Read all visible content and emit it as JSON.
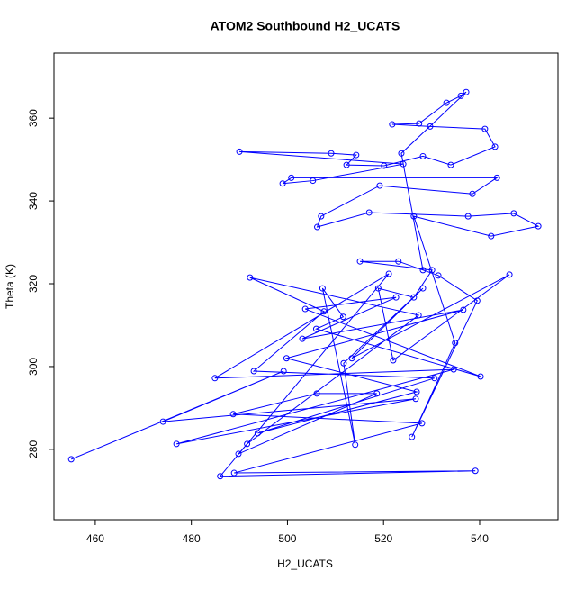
{
  "chart_data": {
    "type": "scatter",
    "title": "ATOM2 Southbound H2_UCATS",
    "x_label": "H2_UCATS",
    "y_label": "Theta (K)",
    "color": "#0000ff",
    "connect_points": true,
    "xlim": [
      451.4,
      556.3
    ],
    "ylim": [
      263.0,
      375.7
    ],
    "xticks": [
      460,
      480,
      500,
      520,
      540
    ],
    "yticks": [
      280,
      300,
      320,
      340,
      360
    ],
    "x": [
      455.0,
      499.2,
      474.1,
      526.7,
      476.9,
      534.6,
      484.9,
      521.1,
      486.0,
      539.1,
      488.9,
      528.0,
      488.7,
      506.1,
      518.6,
      489.8,
      491.6,
      527.3,
      492.2,
      507.6,
      493.0,
      530.6,
      493.8,
      526.9,
      499.8,
      536.6,
      503.1,
      522.6,
      503.7,
      540.2,
      506.0,
      511.6,
      507.3,
      514.1,
      511.7,
      528.2,
      513.4,
      546.2,
      522.0,
      518.9,
      526.3,
      530.1,
      515.1,
      523.1,
      531.4,
      539.5,
      525.9,
      534.9,
      526.3,
      542.4,
      552.2,
      547.1,
      537.6,
      517.0,
      506.2,
      507.0,
      519.2,
      538.5,
      543.6,
      500.8,
      499.0,
      505.3,
      524.1,
      490.0,
      509.1,
      514.3,
      512.3,
      520.1,
      528.2,
      534.0,
      543.2,
      541.1,
      529.7,
      521.8,
      527.4,
      533.1,
      536.1,
      537.2,
      523.7,
      528.2
    ],
    "y": [
      277.6,
      298.9,
      286.7,
      292.2,
      281.3,
      299.3,
      297.2,
      322.4,
      273.5,
      274.8,
      274.3,
      286.3,
      288.5,
      293.5,
      293.5,
      278.9,
      281.3,
      312.4,
      321.5,
      313.3,
      298.9,
      297.2,
      283.9,
      293.9,
      302.0,
      313.7,
      306.7,
      316.7,
      313.9,
      297.6,
      309.1,
      312.0,
      318.9,
      281.1,
      300.8,
      318.9,
      302.0,
      322.2,
      301.5,
      318.9,
      316.7,
      323.3,
      325.4,
      325.4,
      322.0,
      315.9,
      283.0,
      305.7,
      336.3,
      331.5,
      333.9,
      337.0,
      336.3,
      337.2,
      333.7,
      336.3,
      343.7,
      341.7,
      345.6,
      345.6,
      344.2,
      344.9,
      348.9,
      351.9,
      351.5,
      351.1,
      348.7,
      348.5,
      350.8,
      348.7,
      353.1,
      357.4,
      358.0,
      358.5,
      358.7,
      363.7,
      365.4,
      366.3,
      351.5,
      323.3
    ]
  }
}
